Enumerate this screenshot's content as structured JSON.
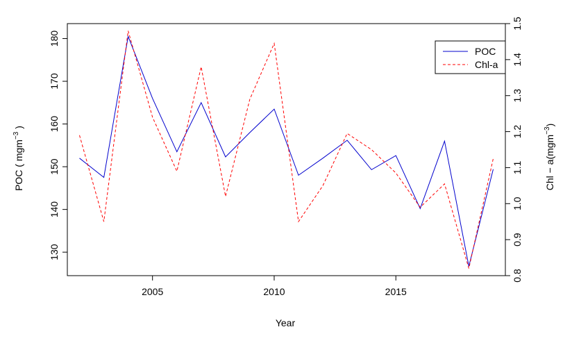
{
  "chart_data": {
    "type": "line",
    "x": [
      2002,
      2003,
      2004,
      2005,
      2006,
      2007,
      2008,
      2009,
      2010,
      2011,
      2012,
      2013,
      2014,
      2015,
      2016,
      2017,
      2018,
      2019
    ],
    "series": [
      {
        "name": "POC",
        "axis": "left",
        "color": "#0000CD",
        "dash": "solid",
        "values": [
          152.0,
          147.5,
          180.5,
          166.0,
          153.5,
          165.0,
          152.3,
          158.0,
          163.5,
          148.0,
          152.0,
          156.2,
          149.3,
          152.6,
          140.2,
          156.0,
          126.7,
          149.4
        ]
      },
      {
        "name": "Chl-a",
        "axis": "right",
        "color": "#FF0000",
        "dash": "dashed",
        "values": [
          1.19,
          0.95,
          1.48,
          1.24,
          1.09,
          1.38,
          1.02,
          1.29,
          1.445,
          0.95,
          1.05,
          1.195,
          1.15,
          1.085,
          0.99,
          1.055,
          0.82,
          1.125
        ]
      }
    ],
    "xlabel": "Year",
    "ylabel_left": "POC ( mgm",
    "ylabel_left_sup": "−3",
    "ylabel_left_tail": " )",
    "ylabel_right": "Chl − a(mgm",
    "ylabel_right_sup": "−3",
    "ylabel_right_tail": ")",
    "xlim": [
      2001.5,
      2019.5
    ],
    "ylim_left": [
      124.5,
      183.5
    ],
    "ylim_right": [
      0.8,
      1.5
    ],
    "xticks": [
      "2005",
      "2010",
      "2015"
    ],
    "yticks_left": [
      "130",
      "140",
      "150",
      "160",
      "170",
      "180"
    ],
    "yticks_right": [
      "0.8",
      "0.9",
      "1.0",
      "1.1",
      "1.2",
      "1.3",
      "1.4",
      "1.5"
    ],
    "legend": {
      "position": "top-right",
      "entries": [
        "POC",
        "Chl-a"
      ]
    },
    "grid": false
  }
}
